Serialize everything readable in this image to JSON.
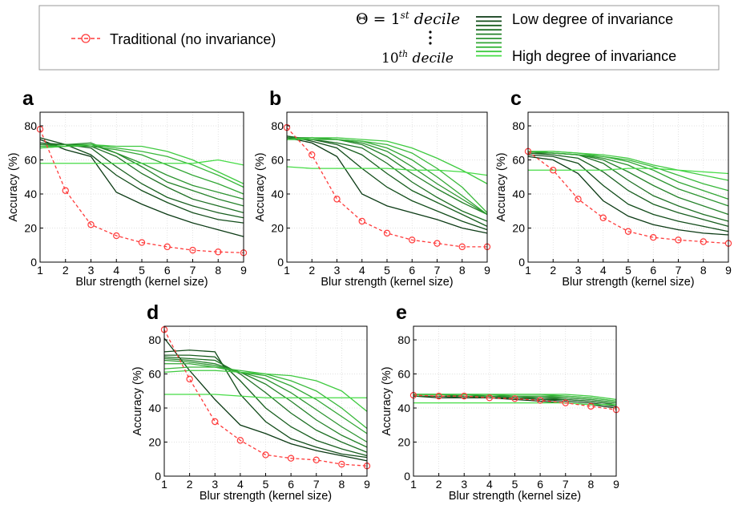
{
  "legend": {
    "traditional_label": "Traditional (no invariance)",
    "theta_top": "Θ = 1st decile",
    "theta_top_pre": "Θ = 1",
    "theta_top_sup": "st",
    "theta_top_post": " decile",
    "theta_bottom_pre": "10",
    "theta_bottom_sup": "th",
    "theta_bottom_post": " decile",
    "low_label": "Low degree of invariance",
    "high_label": "High degree of invariance"
  },
  "colors": {
    "traditional": "#ff3b3b",
    "green_dark": "#0b3a14",
    "green_light": "#46dc46"
  },
  "chart_data": [
    {
      "panel": "a",
      "type": "line",
      "xlabel": "Blur strength (kernel size)",
      "ylabel": "Accuracy (%)",
      "x": [
        1,
        2,
        3,
        4,
        5,
        6,
        7,
        8,
        9
      ],
      "xlim": [
        1,
        9
      ],
      "ylim": [
        0,
        88
      ],
      "yticks": [
        0,
        20,
        40,
        60,
        80
      ],
      "grid": true,
      "traditional": [
        78,
        42,
        22,
        15.5,
        11.5,
        9,
        7,
        6,
        5.5
      ],
      "deciles": [
        [
          72,
          66,
          62,
          41,
          34,
          28,
          23,
          19,
          15
        ],
        [
          73,
          69,
          63,
          51,
          42,
          35,
          29,
          25,
          23
        ],
        [
          70,
          69,
          67,
          56,
          46,
          38,
          33,
          29,
          26
        ],
        [
          69,
          69,
          68,
          62,
          52,
          44,
          37,
          33,
          29
        ],
        [
          69,
          69,
          69,
          64,
          56,
          47,
          42,
          37,
          33
        ],
        [
          68,
          69,
          70,
          64,
          58,
          51,
          45,
          41,
          37
        ],
        [
          67,
          68,
          68,
          66,
          63,
          57,
          51,
          46,
          40
        ],
        [
          68,
          68,
          69,
          67,
          65,
          62,
          57,
          51,
          44
        ],
        [
          67,
          68,
          69,
          68,
          68,
          65,
          60,
          53,
          46
        ],
        [
          58,
          58,
          58,
          58,
          58,
          58,
          58,
          60,
          57
        ]
      ]
    },
    {
      "panel": "b",
      "type": "line",
      "xlabel": "Blur strength (kernel size)",
      "ylabel": "Accuracy (%)",
      "x": [
        1,
        2,
        3,
        4,
        5,
        6,
        7,
        8,
        9
      ],
      "xlim": [
        1,
        9
      ],
      "ylim": [
        0,
        88
      ],
      "yticks": [
        0,
        20,
        40,
        60,
        80
      ],
      "grid": true,
      "traditional": [
        79,
        63,
        37,
        24,
        17,
        13,
        11,
        9,
        9
      ],
      "deciles": [
        [
          73,
          70,
          62,
          40,
          33,
          29,
          25,
          20,
          17
        ],
        [
          74,
          71,
          67,
          55,
          44,
          36,
          30,
          24,
          19
        ],
        [
          74,
          72,
          69,
          63,
          52,
          42,
          35,
          28,
          21
        ],
        [
          73,
          72,
          70,
          67,
          58,
          47,
          38,
          30,
          24
        ],
        [
          73,
          73,
          72,
          69,
          62,
          52,
          43,
          35,
          28
        ],
        [
          73,
          73,
          72,
          70,
          65,
          56,
          46,
          37,
          28
        ],
        [
          72,
          72,
          72,
          71,
          67,
          60,
          50,
          39,
          28
        ],
        [
          72,
          72,
          72,
          71,
          69,
          64,
          55,
          44,
          29
        ],
        [
          72,
          73,
          73,
          72,
          71,
          67,
          61,
          54,
          46
        ],
        [
          56,
          55,
          55,
          55,
          55,
          54,
          54,
          53,
          51
        ]
      ]
    },
    {
      "panel": "c",
      "type": "line",
      "xlabel": "Blur strength (kernel size)",
      "ylabel": "Accuracy (%)",
      "x": [
        1,
        2,
        3,
        4,
        5,
        6,
        7,
        8,
        9
      ],
      "xlim": [
        1,
        9
      ],
      "ylim": [
        0,
        88
      ],
      "yticks": [
        0,
        20,
        40,
        60,
        80
      ],
      "grid": true,
      "traditional": [
        65,
        54,
        37,
        26,
        18,
        14.5,
        13,
        12,
        11
      ],
      "deciles": [
        [
          62,
          60,
          52,
          36,
          27,
          22,
          19,
          17,
          16
        ],
        [
          63,
          62,
          58,
          45,
          34,
          28,
          24,
          21,
          18
        ],
        [
          64,
          63,
          61,
          53,
          42,
          34,
          29,
          25,
          21
        ],
        [
          64,
          64,
          63,
          58,
          48,
          39,
          33,
          28,
          24
        ],
        [
          65,
          64,
          63,
          60,
          53,
          45,
          38,
          33,
          28
        ],
        [
          65,
          64,
          63,
          61,
          57,
          50,
          43,
          38,
          33
        ],
        [
          65,
          64,
          63,
          62,
          59,
          54,
          47,
          42,
          37
        ],
        [
          65,
          65,
          64,
          62,
          60,
          56,
          51,
          46,
          42
        ],
        [
          65,
          65,
          64,
          63,
          61,
          57,
          54,
          51,
          48
        ],
        [
          54,
          54,
          54,
          54,
          55,
          55,
          54,
          53,
          52
        ]
      ]
    },
    {
      "panel": "d",
      "type": "line",
      "xlabel": "Blur strength (kernel size)",
      "ylabel": "Accuracy (%)",
      "x": [
        1,
        2,
        3,
        4,
        5,
        6,
        7,
        8,
        9
      ],
      "xlim": [
        1,
        9
      ],
      "ylim": [
        0,
        88
      ],
      "yticks": [
        0,
        20,
        40,
        60,
        80
      ],
      "grid": true,
      "traditional": [
        86,
        57,
        32,
        21,
        12.5,
        10.5,
        9.5,
        7,
        6
      ],
      "deciles": [
        [
          81,
          62,
          45,
          30,
          25,
          19,
          15,
          12,
          9
        ],
        [
          73,
          74,
          73,
          48,
          32,
          22,
          17,
          13,
          11
        ],
        [
          71,
          71,
          70,
          56,
          40,
          29,
          21,
          16,
          12
        ],
        [
          70,
          69,
          68,
          60,
          49,
          37,
          27,
          20,
          14
        ],
        [
          69,
          68,
          66,
          61,
          54,
          44,
          33,
          24,
          17
        ],
        [
          68,
          67,
          65,
          61,
          57,
          49,
          39,
          29,
          20
        ],
        [
          66,
          66,
          64,
          61,
          59,
          53,
          45,
          35,
          25
        ],
        [
          63,
          64,
          64,
          62,
          60,
          56,
          50,
          40,
          28
        ],
        [
          61,
          62,
          62,
          61,
          60,
          59,
          56,
          50,
          38
        ],
        [
          48,
          48,
          48,
          47,
          46,
          46,
          46,
          46,
          46
        ]
      ]
    },
    {
      "panel": "e",
      "type": "line",
      "xlabel": "Blur strength (kernel size)",
      "ylabel": "Accuracy (%)",
      "x": [
        1,
        2,
        3,
        4,
        5,
        6,
        7,
        8,
        9
      ],
      "xlim": [
        1,
        9
      ],
      "ylim": [
        0,
        88
      ],
      "yticks": [
        0,
        20,
        40,
        60,
        80
      ],
      "grid": true,
      "traditional": [
        47.5,
        47,
        47,
        46,
        45.5,
        44.5,
        43,
        41,
        39
      ],
      "deciles": [
        [
          47,
          46,
          46,
          46,
          45,
          44,
          43,
          42,
          40
        ],
        [
          47,
          47,
          46,
          46,
          46,
          45,
          44,
          43,
          41
        ],
        [
          47,
          47,
          47,
          46,
          46,
          45,
          45,
          44,
          42
        ],
        [
          47,
          47,
          47,
          47,
          46,
          46,
          45,
          44,
          42
        ],
        [
          48,
          48,
          47,
          47,
          47,
          46,
          46,
          45,
          43
        ],
        [
          48,
          48,
          48,
          47,
          47,
          47,
          46,
          45,
          43
        ],
        [
          48,
          48,
          48,
          48,
          47,
          47,
          47,
          46,
          44
        ],
        [
          48,
          48,
          48,
          48,
          48,
          48,
          47,
          46,
          44
        ],
        [
          48,
          48,
          48,
          48,
          48,
          48,
          48,
          47,
          45
        ],
        [
          43,
          43,
          43,
          43,
          43,
          43,
          43,
          42,
          42
        ]
      ]
    }
  ]
}
